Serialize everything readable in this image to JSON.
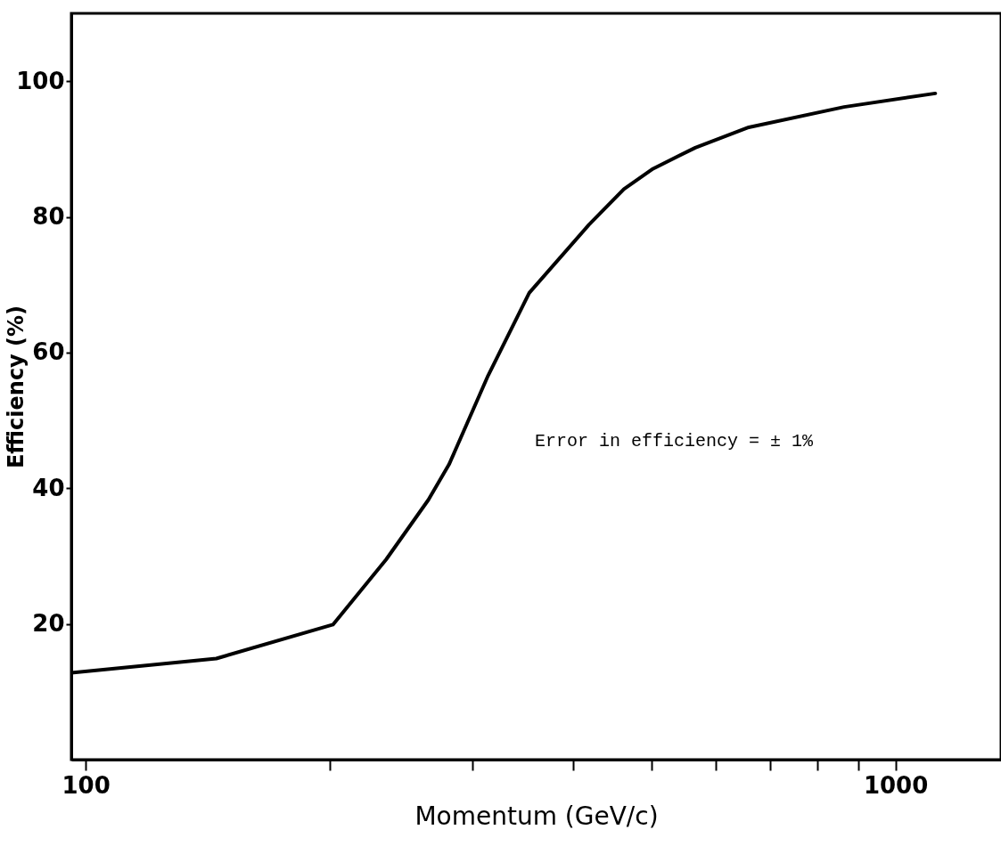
{
  "chart_data": {
    "type": "line",
    "xlabel": "Momentum (GeV/c)",
    "ylabel": "Efficiency (%)",
    "log": "x",
    "xlim": [
      96,
      1350
    ],
    "ylim": [
      0,
      110
    ],
    "xticks": [
      100,
      {
        "value": 200,
        "label": null
      },
      {
        "value": 300,
        "label": null
      },
      {
        "value": 400,
        "label": null
      },
      {
        "value": 500,
        "label": null
      },
      {
        "value": 600,
        "label": null
      },
      {
        "value": 700,
        "label": null
      },
      {
        "value": 800,
        "label": null
      },
      {
        "value": 900,
        "label": null
      },
      1000
    ],
    "yticks": [
      20,
      40,
      60,
      80,
      100
    ],
    "annotations": [
      "Error in efficiency = ± 1%"
    ],
    "series": [
      {
        "color": "#000000",
        "x": [
          96,
          145,
          202,
          235,
          265,
          281,
          314,
          353,
          418,
          462,
          502,
          566,
          659,
          864,
          1120
        ],
        "values": [
          12.8,
          14.9,
          19.9,
          29.5,
          38.3,
          43.5,
          56.6,
          68.8,
          78.8,
          84.1,
          87.1,
          90.2,
          93.2,
          96.2,
          98.2
        ]
      }
    ],
    "grid": false,
    "marker": "none",
    "line_style": "solid"
  }
}
